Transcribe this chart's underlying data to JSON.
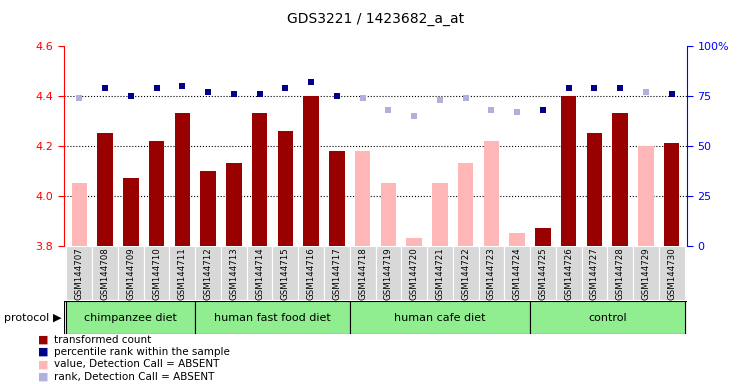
{
  "title": "GDS3221 / 1423682_a_at",
  "samples": [
    "GSM144707",
    "GSM144708",
    "GSM144709",
    "GSM144710",
    "GSM144711",
    "GSM144712",
    "GSM144713",
    "GSM144714",
    "GSM144715",
    "GSM144716",
    "GSM144717",
    "GSM144718",
    "GSM144719",
    "GSM144720",
    "GSM144721",
    "GSM144722",
    "GSM144723",
    "GSM144724",
    "GSM144725",
    "GSM144726",
    "GSM144727",
    "GSM144728",
    "GSM144729",
    "GSM144730"
  ],
  "values": [
    4.05,
    4.25,
    4.07,
    4.22,
    4.33,
    4.1,
    4.13,
    4.33,
    4.26,
    4.4,
    4.18,
    4.18,
    4.05,
    3.83,
    4.05,
    4.13,
    4.22,
    3.85,
    3.87,
    4.4,
    4.25,
    4.33,
    4.2,
    4.21
  ],
  "ranks": [
    74,
    79,
    75,
    79,
    80,
    77,
    76,
    76,
    79,
    82,
    75,
    74,
    68,
    65,
    73,
    74,
    68,
    67,
    68,
    79,
    79,
    79,
    77,
    76
  ],
  "absent": [
    true,
    false,
    false,
    false,
    false,
    false,
    false,
    false,
    false,
    false,
    false,
    true,
    true,
    true,
    true,
    true,
    true,
    true,
    false,
    false,
    false,
    false,
    true,
    false
  ],
  "groups": [
    {
      "label": "chimpanzee diet",
      "start": 0,
      "end": 5,
      "color": "#90EE90"
    },
    {
      "label": "human fast food diet",
      "start": 5,
      "end": 11,
      "color": "#90EE90"
    },
    {
      "label": "human cafe diet",
      "start": 11,
      "end": 18,
      "color": "#90EE90"
    },
    {
      "label": "control",
      "start": 18,
      "end": 24,
      "color": "#90EE90"
    }
  ],
  "ylim_left": [
    3.8,
    4.6
  ],
  "ylim_right": [
    0,
    100
  ],
  "yticks_left": [
    3.8,
    4.0,
    4.2,
    4.4,
    4.6
  ],
  "yticks_right": [
    0,
    25,
    50,
    75,
    100
  ],
  "bar_color_present": "#990000",
  "bar_color_absent": "#FFB6B6",
  "rank_color_present": "#00008B",
  "rank_color_absent": "#B0B0DD",
  "legend_items": [
    {
      "color": "#990000",
      "label": "transformed count"
    },
    {
      "color": "#00008B",
      "label": "percentile rank within the sample"
    },
    {
      "color": "#FFB6B6",
      "label": "value, Detection Call = ABSENT"
    },
    {
      "color": "#B0B0DD",
      "label": "rank, Detection Call = ABSENT"
    }
  ]
}
